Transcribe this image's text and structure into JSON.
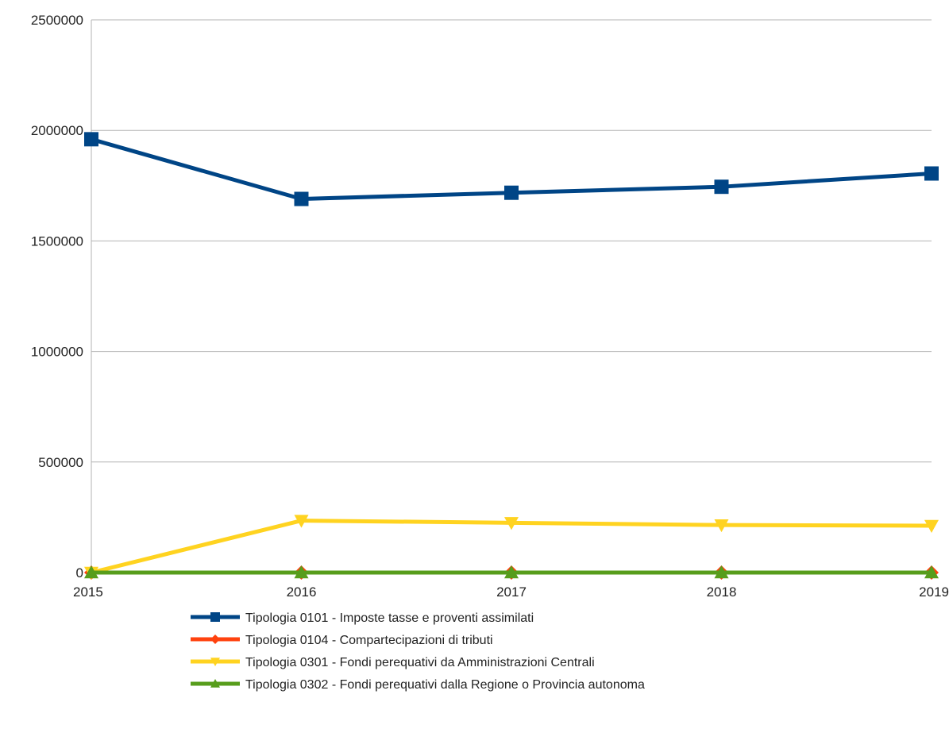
{
  "chart_data": {
    "type": "line",
    "title": "",
    "xlabel": "",
    "ylabel": "",
    "x": [
      "2015",
      "2016",
      "2017",
      "2018",
      "2019"
    ],
    "ylim": [
      0,
      2500000
    ],
    "y_ticks": [
      "0",
      "500000",
      "1000000",
      "1500000",
      "2000000",
      "2500000"
    ],
    "grid": true,
    "legend_position": "bottom",
    "series": [
      {
        "name": "Tipologia 0101 - Imposte tasse e proventi assimilati",
        "values": [
          1960000,
          1690000,
          1718000,
          1745000,
          1805000
        ],
        "color": "#004586",
        "marker": "square"
      },
      {
        "name": "Tipologia 0104 - Compartecipazioni di tributi",
        "values": [
          0,
          0,
          0,
          0,
          0
        ],
        "color": "#ff420e",
        "marker": "diamond"
      },
      {
        "name": "Tipologia 0301 - Fondi perequativi da Amministrazioni Centrali",
        "values": [
          0,
          235000,
          225000,
          215000,
          212000
        ],
        "color": "#ffd320",
        "marker": "triangle-down"
      },
      {
        "name": "Tipologia 0302 - Fondi perequativi dalla Regione o Provincia autonoma",
        "values": [
          0,
          0,
          0,
          0,
          0
        ],
        "color": "#579d1c",
        "marker": "triangle-up"
      }
    ]
  }
}
